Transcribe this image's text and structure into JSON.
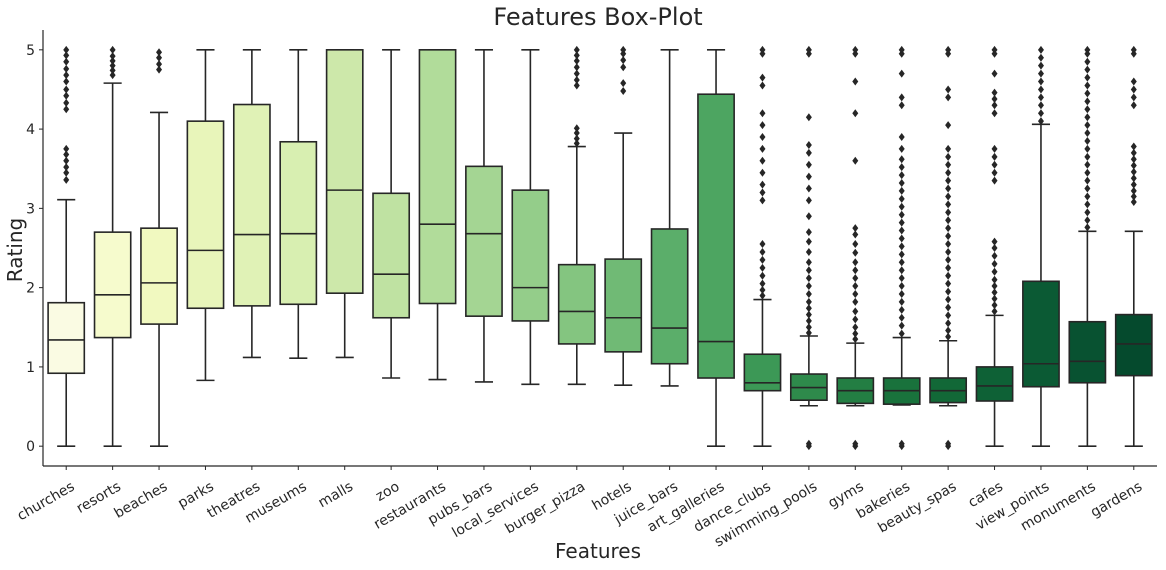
{
  "chart_data": {
    "type": "box",
    "title": "Features Box-Plot",
    "xlabel": "Features",
    "ylabel": "Rating",
    "ylim": [
      -0.25,
      5.25
    ],
    "yticks": [
      0,
      1,
      2,
      3,
      4,
      5
    ],
    "grid": false,
    "categories": [
      "churches",
      "resorts",
      "beaches",
      "parks",
      "theatres",
      "museums",
      "malls",
      "zoo",
      "restaurants",
      "pubs_bars",
      "local_services",
      "burger_pizza",
      "hotels",
      "juice_bars",
      "art_galleries",
      "dance_clubs",
      "swimming_pools",
      "gyms",
      "bakeries",
      "beauty_spas",
      "cafes",
      "view_points",
      "monuments",
      "gardens"
    ],
    "colors": [
      "#fafbe3",
      "#f6fbcd",
      "#f1f9c0",
      "#e8f5ba",
      "#e0f2b6",
      "#d8efb1",
      "#cde8aa",
      "#bfe2a2",
      "#b1dc9a",
      "#a4d593",
      "#94cd8a",
      "#84c580",
      "#70ba75",
      "#5bae6a",
      "#4da561",
      "#3c9856",
      "#2e8a4b",
      "#237e43",
      "#19723c",
      "#126837",
      "#0e6136",
      "#0b5a34",
      "#085231",
      "#054a2d"
    ],
    "boxes": [
      {
        "q1": 0.92,
        "median": 1.34,
        "q3": 1.81,
        "whislo": 0.0,
        "whishi": 3.11,
        "fliers": [
          3.36,
          3.45,
          3.52,
          3.6,
          3.68,
          3.75,
          4.25,
          4.33,
          4.42,
          4.5,
          4.6,
          4.68,
          4.76,
          4.85,
          4.93,
          5.0
        ]
      },
      {
        "q1": 1.37,
        "median": 1.91,
        "q3": 2.7,
        "whislo": 0.0,
        "whishi": 4.58,
        "fliers": [
          4.68,
          4.74,
          4.8,
          4.86,
          4.92,
          5.0
        ]
      },
      {
        "q1": 1.54,
        "median": 2.06,
        "q3": 2.75,
        "whislo": 0.0,
        "whishi": 4.21,
        "fliers": [
          4.75,
          4.82,
          4.9,
          4.97
        ]
      },
      {
        "q1": 1.74,
        "median": 2.47,
        "q3": 4.1,
        "whislo": 0.83,
        "whishi": 5.0,
        "fliers": []
      },
      {
        "q1": 1.77,
        "median": 2.67,
        "q3": 4.31,
        "whislo": 1.12,
        "whishi": 5.0,
        "fliers": []
      },
      {
        "q1": 1.79,
        "median": 2.68,
        "q3": 3.84,
        "whislo": 1.11,
        "whishi": 5.0,
        "fliers": []
      },
      {
        "q1": 1.93,
        "median": 3.23,
        "q3": 5.0,
        "whislo": 1.12,
        "whishi": 5.0,
        "fliers": []
      },
      {
        "q1": 1.62,
        "median": 2.17,
        "q3": 3.19,
        "whislo": 0.86,
        "whishi": 5.0,
        "fliers": []
      },
      {
        "q1": 1.8,
        "median": 2.8,
        "q3": 5.0,
        "whislo": 0.84,
        "whishi": 5.0,
        "fliers": []
      },
      {
        "q1": 1.64,
        "median": 2.68,
        "q3": 3.53,
        "whislo": 0.81,
        "whishi": 5.0,
        "fliers": []
      },
      {
        "q1": 1.58,
        "median": 2.0,
        "q3": 3.23,
        "whislo": 0.78,
        "whishi": 5.0,
        "fliers": []
      },
      {
        "q1": 1.29,
        "median": 1.7,
        "q3": 2.29,
        "whislo": 0.78,
        "whishi": 3.78,
        "fliers": [
          3.82,
          3.88,
          3.95,
          4.01,
          4.55,
          4.62,
          4.7,
          4.78,
          4.86,
          4.93,
          5.0
        ]
      },
      {
        "q1": 1.19,
        "median": 1.62,
        "q3": 2.36,
        "whislo": 0.77,
        "whishi": 3.95,
        "fliers": [
          4.48,
          4.58,
          4.78,
          4.87,
          4.95,
          5.0
        ]
      },
      {
        "q1": 1.04,
        "median": 1.49,
        "q3": 2.74,
        "whislo": 0.76,
        "whishi": 5.0,
        "fliers": []
      },
      {
        "q1": 0.86,
        "median": 1.32,
        "q3": 4.44,
        "whislo": 0.0,
        "whishi": 5.0,
        "fliers": []
      },
      {
        "q1": 0.7,
        "median": 0.8,
        "q3": 1.16,
        "whislo": 0.0,
        "whishi": 1.85,
        "fliers": [
          1.9,
          1.97,
          2.05,
          2.15,
          2.25,
          2.35,
          2.45,
          2.55,
          3.1,
          3.2,
          3.3,
          3.45,
          3.6,
          3.75,
          3.9,
          4.05,
          4.2,
          4.55,
          4.65,
          4.95,
          5.0
        ]
      },
      {
        "q1": 0.58,
        "median": 0.74,
        "q3": 0.91,
        "whislo": 0.51,
        "whishi": 1.39,
        "fliers": [
          0.0,
          0.03,
          1.43,
          1.5,
          1.58,
          1.66,
          1.74,
          1.82,
          1.92,
          2.02,
          2.12,
          2.22,
          2.32,
          2.45,
          2.58,
          2.7,
          2.9,
          3.1,
          3.25,
          3.4,
          3.55,
          3.7,
          3.8,
          4.15,
          4.95,
          5.0
        ]
      },
      {
        "q1": 0.54,
        "median": 0.7,
        "q3": 0.86,
        "whislo": 0.51,
        "whishi": 1.3,
        "fliers": [
          0.0,
          0.03,
          1.35,
          1.42,
          1.5,
          1.6,
          1.7,
          1.82,
          1.92,
          2.02,
          2.12,
          2.22,
          2.32,
          2.44,
          2.55,
          2.67,
          2.75,
          3.6,
          4.2,
          4.6,
          4.95,
          5.0
        ]
      },
      {
        "q1": 0.53,
        "median": 0.7,
        "q3": 0.86,
        "whislo": 0.52,
        "whishi": 1.37,
        "fliers": [
          0.0,
          0.03,
          1.42,
          1.52,
          1.62,
          1.72,
          1.82,
          1.92,
          2.02,
          2.12,
          2.22,
          2.32,
          2.42,
          2.52,
          2.62,
          2.72,
          2.82,
          2.92,
          3.02,
          3.12,
          3.22,
          3.32,
          3.42,
          3.52,
          3.62,
          3.75,
          3.9,
          4.3,
          4.4,
          4.7,
          4.95,
          5.0
        ]
      },
      {
        "q1": 0.55,
        "median": 0.7,
        "q3": 0.86,
        "whislo": 0.51,
        "whishi": 1.33,
        "fliers": [
          0.0,
          0.03,
          1.38,
          1.46,
          1.55,
          1.65,
          1.75,
          1.85,
          1.95,
          2.05,
          2.15,
          2.25,
          2.35,
          2.45,
          2.55,
          2.65,
          2.75,
          2.85,
          2.95,
          3.05,
          3.15,
          3.25,
          3.35,
          3.45,
          3.55,
          3.65,
          3.75,
          4.05,
          4.4,
          4.5,
          4.95,
          5.0
        ]
      },
      {
        "q1": 0.57,
        "median": 0.76,
        "q3": 1.0,
        "whislo": 0.0,
        "whishi": 1.65,
        "fliers": [
          1.7,
          1.78,
          1.86,
          1.94,
          2.02,
          2.1,
          2.2,
          2.3,
          2.4,
          2.5,
          2.58,
          3.35,
          3.45,
          3.55,
          3.65,
          3.75,
          4.2,
          4.3,
          4.38,
          4.46,
          4.7,
          4.95,
          5.0
        ]
      },
      {
        "q1": 0.75,
        "median": 1.04,
        "q3": 2.08,
        "whislo": 0.0,
        "whishi": 4.06,
        "fliers": [
          4.1,
          4.2,
          4.3,
          4.4,
          4.5,
          4.6,
          4.7,
          4.8,
          4.9,
          5.0
        ]
      },
      {
        "q1": 0.8,
        "median": 1.07,
        "q3": 1.57,
        "whislo": 0.0,
        "whishi": 2.71,
        "fliers": [
          2.76,
          2.85,
          2.95,
          3.05,
          3.15,
          3.25,
          3.35,
          3.45,
          3.55,
          3.65,
          3.75,
          3.85,
          3.95,
          4.05,
          4.15,
          4.25,
          4.35,
          4.45,
          4.55,
          4.65,
          4.75,
          4.85,
          4.95,
          5.0
        ]
      },
      {
        "q1": 0.89,
        "median": 1.29,
        "q3": 1.66,
        "whislo": 0.0,
        "whishi": 2.71,
        "fliers": [
          3.08,
          3.15,
          3.22,
          3.3,
          3.38,
          3.46,
          3.54,
          3.62,
          3.7,
          3.78,
          4.3,
          4.4,
          4.5,
          4.6,
          4.95,
          5.0
        ]
      }
    ]
  }
}
